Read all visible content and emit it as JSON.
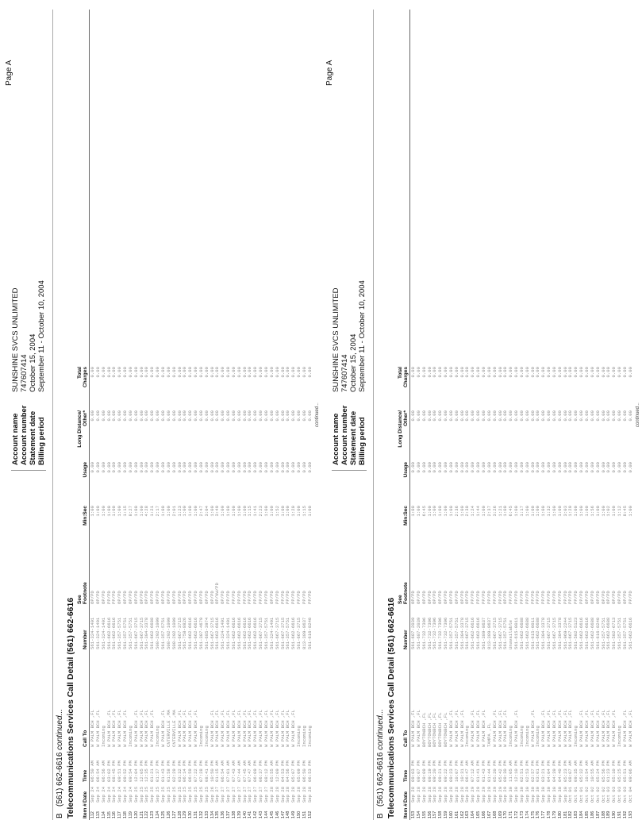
{
  "header": {
    "page_label": "Page A",
    "account": [
      {
        "label": "Account name",
        "value": "SUNSHINE SVCS UNLIMITED"
      },
      {
        "label": "Account number",
        "value": "747607414"
      },
      {
        "label": "Statement date",
        "value": "October 15, 2004"
      },
      {
        "label": "Billing period",
        "value": "September 11 - October 10, 2004"
      }
    ]
  },
  "section": {
    "letter": "B",
    "phone": "(561) 662-6616",
    "continued": "continued..."
  },
  "title": "Telecommunications Services Call Detail (561) 662-6616",
  "columns": [
    "Item #",
    "Date",
    "Time",
    "Call To",
    "Number",
    "See\nFootnote",
    "Min:Sec",
    "Usage",
    "Long Distance/\nOther*",
    "Total\nCharges"
  ],
  "footer_continued": "continued...",
  "pages": [
    {
      "rows": [
        [
          "112",
          "Sep 24",
          "06:50 AM",
          "W PALM BCH ,FL",
          "561-324-1491",
          "OP/PD",
          "1:00",
          "0.00",
          "0.00",
          "0.00"
        ],
        [
          "113",
          "Sep 24",
          "06:54 AM",
          "W PALM BCH ,FL",
          "561-324-1491",
          "OP/PD",
          "1:00",
          "0.00",
          "0.00",
          "0.00"
        ],
        [
          "114",
          "Sep 24",
          "06:56 AM",
          "Incoming",
          "561-324-1491",
          "OP/PD",
          "1:00",
          "0.00",
          "0.00",
          "0.00"
        ],
        [
          "115",
          "Sep 24",
          "03:02 PM",
          "W PALM BCH ,FL",
          "561-662-6616",
          "PP/PD",
          "1:00",
          "0.00",
          "0.00",
          "0.00"
        ],
        [
          "116",
          "Sep 24",
          "08:45 PM",
          "W PALM BCH ,FL",
          "561-662-6616",
          "PP/PD",
          "1:00",
          "0.00",
          "0.00",
          "0.00"
        ],
        [
          "117",
          "Sep 24",
          "09:51 PM",
          "W PALM BCH ,FL",
          "561-357-5751",
          "OP/PD",
          "1:00",
          "0.00",
          "0.00",
          "0.00"
        ],
        [
          "118",
          "Sep 24",
          "09:52 PM",
          "W PALM BCH ,FL",
          "561-357-5751",
          "OP/PD",
          "1:15",
          "0.00",
          "0.00",
          "0.00"
        ],
        [
          "119",
          "Sep 24",
          "09:54 PM",
          "Incoming",
          "561-357-5751",
          "OP/PD",
          "8:27",
          "0.00",
          "0.00",
          "0.00"
        ],
        [
          "120",
          "Sep 25",
          "12:04 PM",
          "W PALM BCH ,FL",
          "561-667-3715",
          "OP/PD",
          "1:00",
          "0.00",
          "0.00",
          "0.00"
        ],
        [
          "121",
          "Sep 25",
          "12:05 PM",
          "W PALM BCH ,FL",
          "561-667-3715",
          "OP/PD",
          "1:00",
          "0.00",
          "0.00",
          "0.00"
        ],
        [
          "122",
          "Sep 25",
          "12:35 PM",
          "W PALM BCH ,FL",
          "561-304-3378",
          "OP/PD",
          "4:28",
          "0.00",
          "0.00",
          "0.00"
        ],
        [
          "123",
          "Sep 25",
          "01:21 PM",
          "W PALM BCH ,FL",
          "561-662-6688",
          "OP/PD",
          "1:21",
          "0.00",
          "0.00",
          "0.00"
        ],
        [
          "124",
          "Sep 25",
          "01:37 PM",
          "Incoming",
          "508-292-1099",
          "OP/PD",
          "2:17",
          "0.00",
          "0.00",
          "0.00"
        ],
        [
          "125",
          "Sep 25",
          "01:43 PM",
          "W PALM BCH ,FL",
          "561-357-5751",
          "OP/PD",
          "1:00",
          "0.00",
          "0.00",
          "0.00"
        ],
        [
          "126",
          "Sep 25",
          "01:58 PM",
          "CNTERVILLE ,MA",
          "508-292-1099",
          "OP/PD",
          "1:00",
          "0.00",
          "0.00",
          "0.00"
        ],
        [
          "127",
          "Sep 25",
          "02:29 PM",
          "CNTERVILLE ,MA",
          "508-292-1099",
          "OP/PD",
          "2:01",
          "0.00",
          "0.00",
          "0.00"
        ],
        [
          "128",
          "Sep 25",
          "03:32 PM",
          "W PALM BCH ,FL",
          "561-667-3715",
          "OP/PD",
          "1:23",
          "0.00",
          "0.00",
          "0.00"
        ],
        [
          "129",
          "Sep 25",
          "06:14 PM",
          "W PALM BCH ,FL",
          "561-758-8826",
          "OP/PD",
          "1:00",
          "0.00",
          "0.00",
          "0.00"
        ],
        [
          "130",
          "Sep 25",
          "06:59 PM",
          "W PALM BCH ,FL",
          "561-662-6616",
          "OP/PD",
          "1:00",
          "0.00",
          "0.00",
          "0.00"
        ],
        [
          "131",
          "Sep 25",
          "07:22 PM",
          "W PALM BCH ,FL",
          "561-662-6616",
          "OP/PD",
          "1:00",
          "0.00",
          "0.00",
          "0.00"
        ],
        [
          "132",
          "Sep 25",
          "07:28 PM",
          "Incoming",
          "561-307-4679",
          "OP/PD",
          "2:47",
          "0.00",
          "0.00",
          "0.00"
        ],
        [
          "133",
          "Sep 25",
          "08:41 PM",
          "Incoming",
          "561-685-3974",
          "OP/PD",
          "3:04",
          "0.00",
          "0.00",
          "0.00"
        ],
        [
          "134",
          "Sep 26",
          "10:50 PM",
          "W PALM BCH ,FL",
          "561-667-3715",
          "OP/PD",
          "1:00",
          "0.00",
          "0.00",
          "0.00"
        ],
        [
          "135",
          "Sep 27",
          "01:15 AM",
          "W PALM BCH ,FL",
          "561-662-6616",
          "OP/NW/PD",
          "3:49",
          "0.00",
          "0.00",
          "0.00"
        ],
        [
          "136",
          "Sep 27",
          "06:54 AM",
          "W PALM BCH ,FL",
          "561-324-1491",
          "OP/PD",
          "1:09",
          "0.00",
          "0.00",
          "0.00"
        ],
        [
          "137",
          "Sep 27",
          "07:01 AM",
          "W PALM BCH ,FL",
          "561-324-1491",
          "PP/PD",
          "1:00",
          "0.00",
          "0.00",
          "0.00"
        ],
        [
          "138",
          "Sep 27",
          "07:43 AM",
          "W PALM BCH ,FL",
          "561-662-6616",
          "PP/PD",
          "1:00",
          "0.00",
          "0.00",
          "0.00"
        ],
        [
          "139",
          "Sep 27",
          "07:44 AM",
          "W PALM BCH ,FL",
          "561-662-6616",
          "PP/PD",
          "1:00",
          "0.00",
          "0.00",
          "0.00"
        ],
        [
          "140",
          "Sep 27",
          "07:45 AM",
          "W PALM BCH ,FL",
          "561-662-6616",
          "PP/PD",
          "1:00",
          "0.00",
          "0.00",
          "0.00"
        ],
        [
          "141",
          "Sep 27",
          "07:47 AM",
          "W PALM BCH ,FL",
          "561-662-6616",
          "PP/PD",
          "1:15",
          "0.00",
          "0.00",
          "0.00"
        ],
        [
          "142",
          "Sep 27",
          "06:09 PM",
          "W PALM BCH ,FL",
          "561-662-6616",
          "PP/PD",
          "1:41",
          "0.00",
          "0.00",
          "0.00"
        ],
        [
          "143",
          "Sep 27",
          "06:37 PM",
          "W PALM BCH ,FL",
          "561-667-3715",
          "PP/PD",
          "2:23",
          "0.00",
          "0.00",
          "0.00"
        ],
        [
          "144",
          "Sep 27",
          "08:12 PM",
          "W PALM BCH ,FL",
          "561-357-5751",
          "PP/PD",
          "1:00",
          "0.00",
          "0.00",
          "0.00"
        ],
        [
          "145",
          "Sep 28",
          "05:55 AM",
          "W PALM BCH ,FL",
          "561-324-1491",
          "OP/PD",
          "1:00",
          "0.00",
          "0.00",
          "0.00"
        ],
        [
          "146",
          "Sep 28",
          "12:09 PM",
          "W PALM BCH ,FL",
          "561-667-3715",
          "PP/PD",
          "1:52",
          "0.00",
          "0.00",
          "0.00"
        ],
        [
          "147",
          "Sep 28",
          "04:53 PM",
          "W PALM BCH ,FL",
          "561-667-3715",
          "PP/PD",
          "1:00",
          "0.00",
          "0.00",
          "0.00"
        ],
        [
          "148",
          "Sep 28",
          "04:56 PM",
          "W PALM BCH ,FL",
          "561-357-5751",
          "PP/PD",
          "1:00",
          "0.00",
          "0.00",
          "0.00"
        ],
        [
          "149",
          "Sep 28",
          "05:07 PM",
          "W PALM BCH ,FL",
          "561-662-6616",
          "PP/PD",
          "1:20",
          "0.00",
          "0.00",
          "0.00"
        ],
        [
          "150",
          "Sep 28",
          "05:09 PM",
          "Incoming",
          "561-667-3715",
          "PP/PD",
          "1:00",
          "0.00",
          "0.00",
          "0.00"
        ],
        [
          "151",
          "Sep 28",
          "06:50 PM",
          "Incoming",
          "813-389-8637",
          "PP/PD",
          "1:15",
          "0.00",
          "0.00",
          "0.00"
        ],
        [
          "152",
          "Sep 28",
          "06:53 PM",
          "Incoming",
          "561-616-8240",
          "PP/PD",
          "1:00",
          "0.00",
          "0.00",
          "0.00"
        ]
      ]
    },
    {
      "rows": [
        [
          "153",
          "Sep 28",
          "09:03 PM",
          "W PALM BCH ,FL",
          "561-687-2039",
          "OP/PD",
          "1:00",
          "0.00",
          "0.00",
          "0.00"
        ],
        [
          "154",
          "Sep 28",
          "09:07 PM",
          "W PALM BCH ,FL",
          "561-687-2039",
          "OP/PD",
          "1:00",
          "0.00",
          "0.00",
          "0.00"
        ],
        [
          "155",
          "Sep 28",
          "09:09 PM",
          "BOYTONBCH ,FL",
          "561-732-7396",
          "OP/PD",
          "6:45",
          "0.00",
          "0.00",
          "0.00"
        ],
        [
          "156",
          "Sep 28",
          "09:19 PM",
          "BOYTONBCH ,FL",
          "561-732-7396",
          "OP/PD",
          "1:00",
          "0.00",
          "0.00",
          "0.00"
        ],
        [
          "157",
          "Sep 28",
          "09:20 PM",
          "BOYTONBCH ,FL",
          "561-732-7396",
          "OP/PD",
          "1:00",
          "0.00",
          "0.00",
          "0.00"
        ],
        [
          "158",
          "Sep 28",
          "09:21 PM",
          "BOYTONBCH ,FL",
          "561-732-7396",
          "OP/PD",
          "1:00",
          "0.00",
          "0.00",
          "0.00"
        ],
        [
          "159",
          "Sep 28",
          "09:22 PM",
          "BOYTONBCH ,FL",
          "561-732-7396",
          "OP/PD",
          "1:00",
          "0.00",
          "0.00",
          "0.00"
        ],
        [
          "160",
          "Sep 28",
          "09:23 PM",
          "W PALM BCH ,FL",
          "561-357-5751",
          "OP/PD",
          "1:00",
          "0.00",
          "0.00",
          "0.00"
        ],
        [
          "161",
          "Sep 28",
          "10:07 PM",
          "W PALM BCH ,FL",
          "561-357-5751",
          "OP/PD",
          "2:36",
          "0.00",
          "0.00",
          "0.00"
        ],
        [
          "162",
          "Sep 28",
          "10:31 PM",
          "W PALM BCH ,FL",
          "561-304-3378",
          "OP/PD",
          "1:00",
          "0.00",
          "0.00",
          "0.00"
        ],
        [
          "163",
          "Sep 29",
          "06:47 AM",
          "Incoming",
          "561-667-3715",
          "OP/PD",
          "2:30",
          "0.00",
          "0.00",
          "0.00"
        ],
        [
          "164",
          "Sep 29",
          "07:12 AM",
          "W PALM BCH ,FL",
          "561-662-6616",
          "PP/PD",
          "1:24",
          "0.00",
          "0.00",
          "0.00"
        ],
        [
          "165",
          "Sep 29",
          "01:41 PM",
          "W PALM BCH ,FL",
          "561-662-6616",
          "PP/PD",
          "1:44",
          "0.00",
          "0.00",
          "0.00"
        ],
        [
          "166",
          "Sep 29",
          "01:43 PM",
          "W PALM BCH ,FL",
          "561-389-8637",
          "PP/PD",
          "1:00",
          "0.00",
          "0.00",
          "0.00"
        ],
        [
          "167",
          "Sep 29",
          "01:44 PM",
          "TAMPA ,FL",
          "813-389-8637",
          "PP/PD",
          "2:37",
          "0.00",
          "0.00",
          "0.00"
        ],
        [
          "168",
          "Sep 29",
          "05:20 PM",
          "W PALM BCH ,FL",
          "561-667-3715",
          "PP/PD",
          "3:26",
          "0.00",
          "0.00",
          "0.00"
        ],
        [
          "169",
          "Sep 29",
          "05:42 PM",
          "W PALM BCH ,FL",
          "561-667-3715",
          "PP/PD",
          "1:21",
          "0.00",
          "0.00",
          "0.00"
        ],
        [
          "170",
          "Sep 29",
          "09:30 PM",
          "W PALM BCH ,FL",
          "561-357-5751",
          "OP/PD",
          "1:00",
          "0.00",
          "0.00",
          "0.00"
        ],
        [
          "171",
          "Sep 30",
          "11:05 AM",
          "Incoming",
          "Unavailable",
          "PP/PD",
          "6:45",
          "0.00",
          "0.00",
          "0.00"
        ],
        [
          "172",
          "Sep 30",
          "12:10 PM",
          "W PALM BCH ,FL",
          "561-615-0011",
          "PP/PD",
          "1:00",
          "0.00",
          "0.00",
          "0.00"
        ],
        [
          "173",
          "Sep 30",
          "02:51 PM",
          "Incoming",
          "561-662-6688",
          "PP/PD",
          "1:17",
          "0.00",
          "0.00",
          "0.00"
        ],
        [
          "174",
          "Sep 30",
          "02:53 PM",
          "Incoming",
          "561-662-6688",
          "PP/PD",
          "1:00",
          "0.00",
          "0.00",
          "0.00"
        ],
        [
          "175",
          "Sep 30",
          "02:57 PM",
          "W PALM BCH ,FL",
          "561-615-0011",
          "PP/PD",
          "1:00",
          "0.00",
          "0.00",
          "0.00"
        ],
        [
          "176",
          "Sep 30",
          "03:01 PM",
          "Incoming",
          "561-662-6688",
          "PP/PD",
          "1:00",
          "0.00",
          "0.00",
          "0.00"
        ],
        [
          "177",
          "Sep 30",
          "03:21 PM",
          "W PALM BCH ,FL",
          "561-304-3378",
          "PP/PD",
          "1:00",
          "0.00",
          "0.00",
          "0.00"
        ],
        [
          "178",
          "Sep 30",
          "04:04 PM",
          "W PALM BCH ,FL",
          "561-667-3715",
          "PP/PD",
          "1:32",
          "0.00",
          "0.00",
          "0.00"
        ],
        [
          "179",
          "Sep 30",
          "04:39 PM",
          "W PALM BCH ,FL",
          "561-667-3715",
          "PP/PD",
          "1:00",
          "0.00",
          "0.00",
          "0.00"
        ],
        [
          "180",
          "Sep 30",
          "04:40 PM",
          "W PALM BCH ,FL",
          "561-304-3378",
          "PP/PD",
          "1:00",
          "0.00",
          "0.00",
          "0.00"
        ],
        [
          "181",
          "Sep 30",
          "05:23 PM",
          "W PALM BCH ,FL",
          "561-969-2244",
          "PP/PD",
          "3:03",
          "0.00",
          "0.00",
          "0.00"
        ],
        [
          "182",
          "Oct 01",
          "08:07 AM",
          "W PALM BCH ,FL",
          "561-667-3715",
          "PP/PD",
          "1:29",
          "0.00",
          "0.00",
          "0.00"
        ],
        [
          "183",
          "Oct 01",
          "09:35 AM",
          "Incoming",
          "561-502-5123",
          "PP/PD",
          "1:00",
          "0.00",
          "0.00",
          "0.00"
        ],
        [
          "184",
          "Oct 01",
          "05:32 PM",
          "W PALM BCH ,FL",
          "561-662-6616",
          "PP/PD",
          "1:00",
          "0.00",
          "0.00",
          "0.00"
        ],
        [
          "185",
          "Oct 02",
          "10:54 AM",
          "W PALM BCH ,FL",
          "561-662-6616",
          "OP/PD",
          "1:00",
          "0.00",
          "0.00",
          "0.00"
        ],
        [
          "186",
          "Oct 02",
          "10:55 AM",
          "W PALM BCH ,FL",
          "561-662-6688",
          "OP/PD",
          "1:56",
          "0.00",
          "0.00",
          "0.00"
        ],
        [
          "187",
          "Oct 02",
          "05:24 PM",
          "W PALM BCH ,FL",
          "561-616-8240",
          "OP/PD",
          "1:00",
          "0.00",
          "0.00",
          "0.00"
        ],
        [
          "188",
          "Oct 02",
          "05:56 PM",
          "W PALM BCH ,FL",
          "561-357-5751",
          "OP/PD",
          "1:00",
          "0.00",
          "0.00",
          "0.00"
        ],
        [
          "189",
          "Oct 03",
          "01:23 PM",
          "W PALM BCH ,FL",
          "561-662-6688",
          "OP/PD",
          "1:02",
          "0.00",
          "0.00",
          "0.00"
        ],
        [
          "190",
          "Oct 03",
          "05:10 PM",
          "W PALM BCH ,FL",
          "561-502-6713",
          "OP/PD",
          "1:00",
          "0.00",
          "0.00",
          "0.00"
        ],
        [
          "191",
          "Oct 03",
          "05:25 PM",
          "Incoming",
          "561-357-5751",
          "OP/PD",
          "1:12",
          "0.00",
          "0.00",
          "0.00"
        ],
        [
          "192",
          "Oct 03",
          "05:51 PM",
          "W PALM BCH ,FL",
          "561-357-5751",
          "OP/PD",
          "8:45",
          "0.00",
          "0.00",
          "0.00"
        ],
        [
          "193",
          "Oct 04",
          "09:06 AM",
          "W PALM BCH ,FL",
          "561-662-6616",
          "PP/PD",
          "1:00",
          "0.00",
          "0.00",
          "0.00"
        ]
      ]
    }
  ]
}
